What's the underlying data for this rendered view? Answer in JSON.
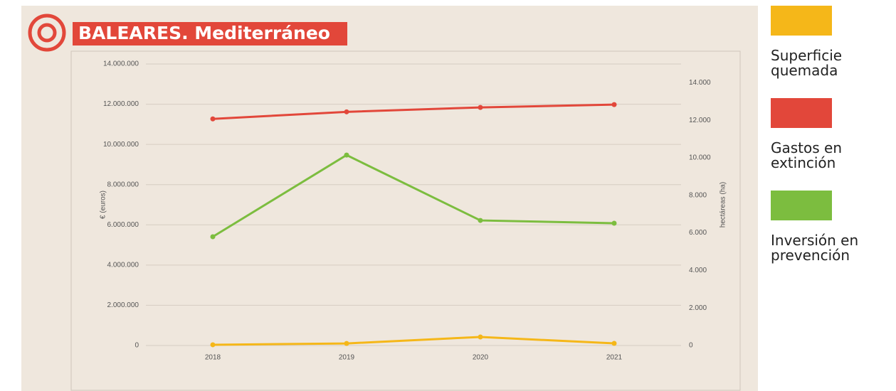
{
  "chart_data": {
    "type": "line",
    "title": "BALEARES. Mediterráneo",
    "y_label": "€ (euros)",
    "y2_label": "hectáreas (ha)",
    "categories": [
      "2018",
      "2019",
      "2020",
      "2021"
    ],
    "series": [
      {
        "name": "Superficie quemada",
        "color": "#f5b719",
        "axis": "y2",
        "values": [
          40,
          110,
          455,
          115
        ]
      },
      {
        "name": "Gastos en extinción",
        "color": "#e2473a",
        "values": [
          11270000,
          11620000,
          11840000,
          11980000
        ]
      },
      {
        "name": "Inversión en prevención",
        "color": "#7cbd3f",
        "values": [
          5410000,
          9470000,
          6220000,
          6080000
        ]
      }
    ],
    "ylim": [
      0,
      14000000
    ],
    "yticks": [
      0,
      {
        "value": 2000000,
        "label": "2.000.000"
      },
      {
        "value": 4000000,
        "label": "4.000.000"
      },
      {
        "value": 6000000,
        "label": "6.000.000"
      },
      {
        "value": 8000000,
        "label": "8.000.000"
      },
      {
        "value": 10000000,
        "label": "10.000.000"
      },
      {
        "value": 12000000,
        "label": "12.000.000"
      },
      {
        "value": 14000000,
        "label": "14.000.000"
      }
    ],
    "y2lim": [
      0,
      15000
    ],
    "y2ticks": [
      0,
      {
        "value": 2000,
        "label": "2.000"
      },
      {
        "value": 4000,
        "label": "4.000"
      },
      {
        "value": 6000,
        "label": "6.000"
      },
      {
        "value": 8000,
        "label": "8.000"
      },
      {
        "value": 10000,
        "label": "10.000"
      },
      {
        "value": 12000,
        "label": "12.000"
      },
      {
        "value": 14000,
        "label": "14.000"
      }
    ],
    "grid": true
  }
}
